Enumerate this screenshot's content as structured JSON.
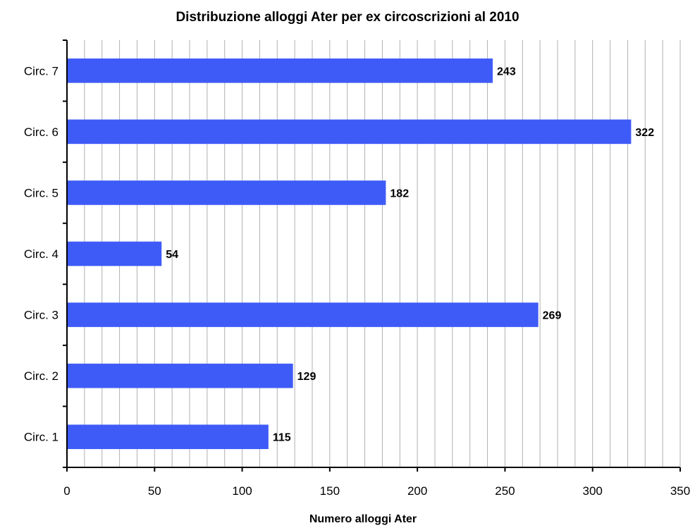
{
  "chart_data": {
    "type": "bar",
    "orientation": "horizontal",
    "title": "Distribuzione alloggi Ater per ex circoscrizioni al 2010",
    "xlabel": "Numero alloggi Ater",
    "ylabel": "",
    "categories": [
      "Circ. 1",
      "Circ. 2",
      "Circ. 3",
      "Circ. 4",
      "Circ. 5",
      "Circ. 6",
      "Circ. 7"
    ],
    "values": [
      115,
      129,
      269,
      54,
      182,
      322,
      243
    ],
    "xlim": [
      0,
      350
    ],
    "x_ticks": [
      0,
      50,
      100,
      150,
      200,
      250,
      300,
      350
    ],
    "minor_gridline_step": 10,
    "grid": true,
    "bar_color": "#3f5bf7",
    "gridline_color": "#b0b0b0"
  }
}
